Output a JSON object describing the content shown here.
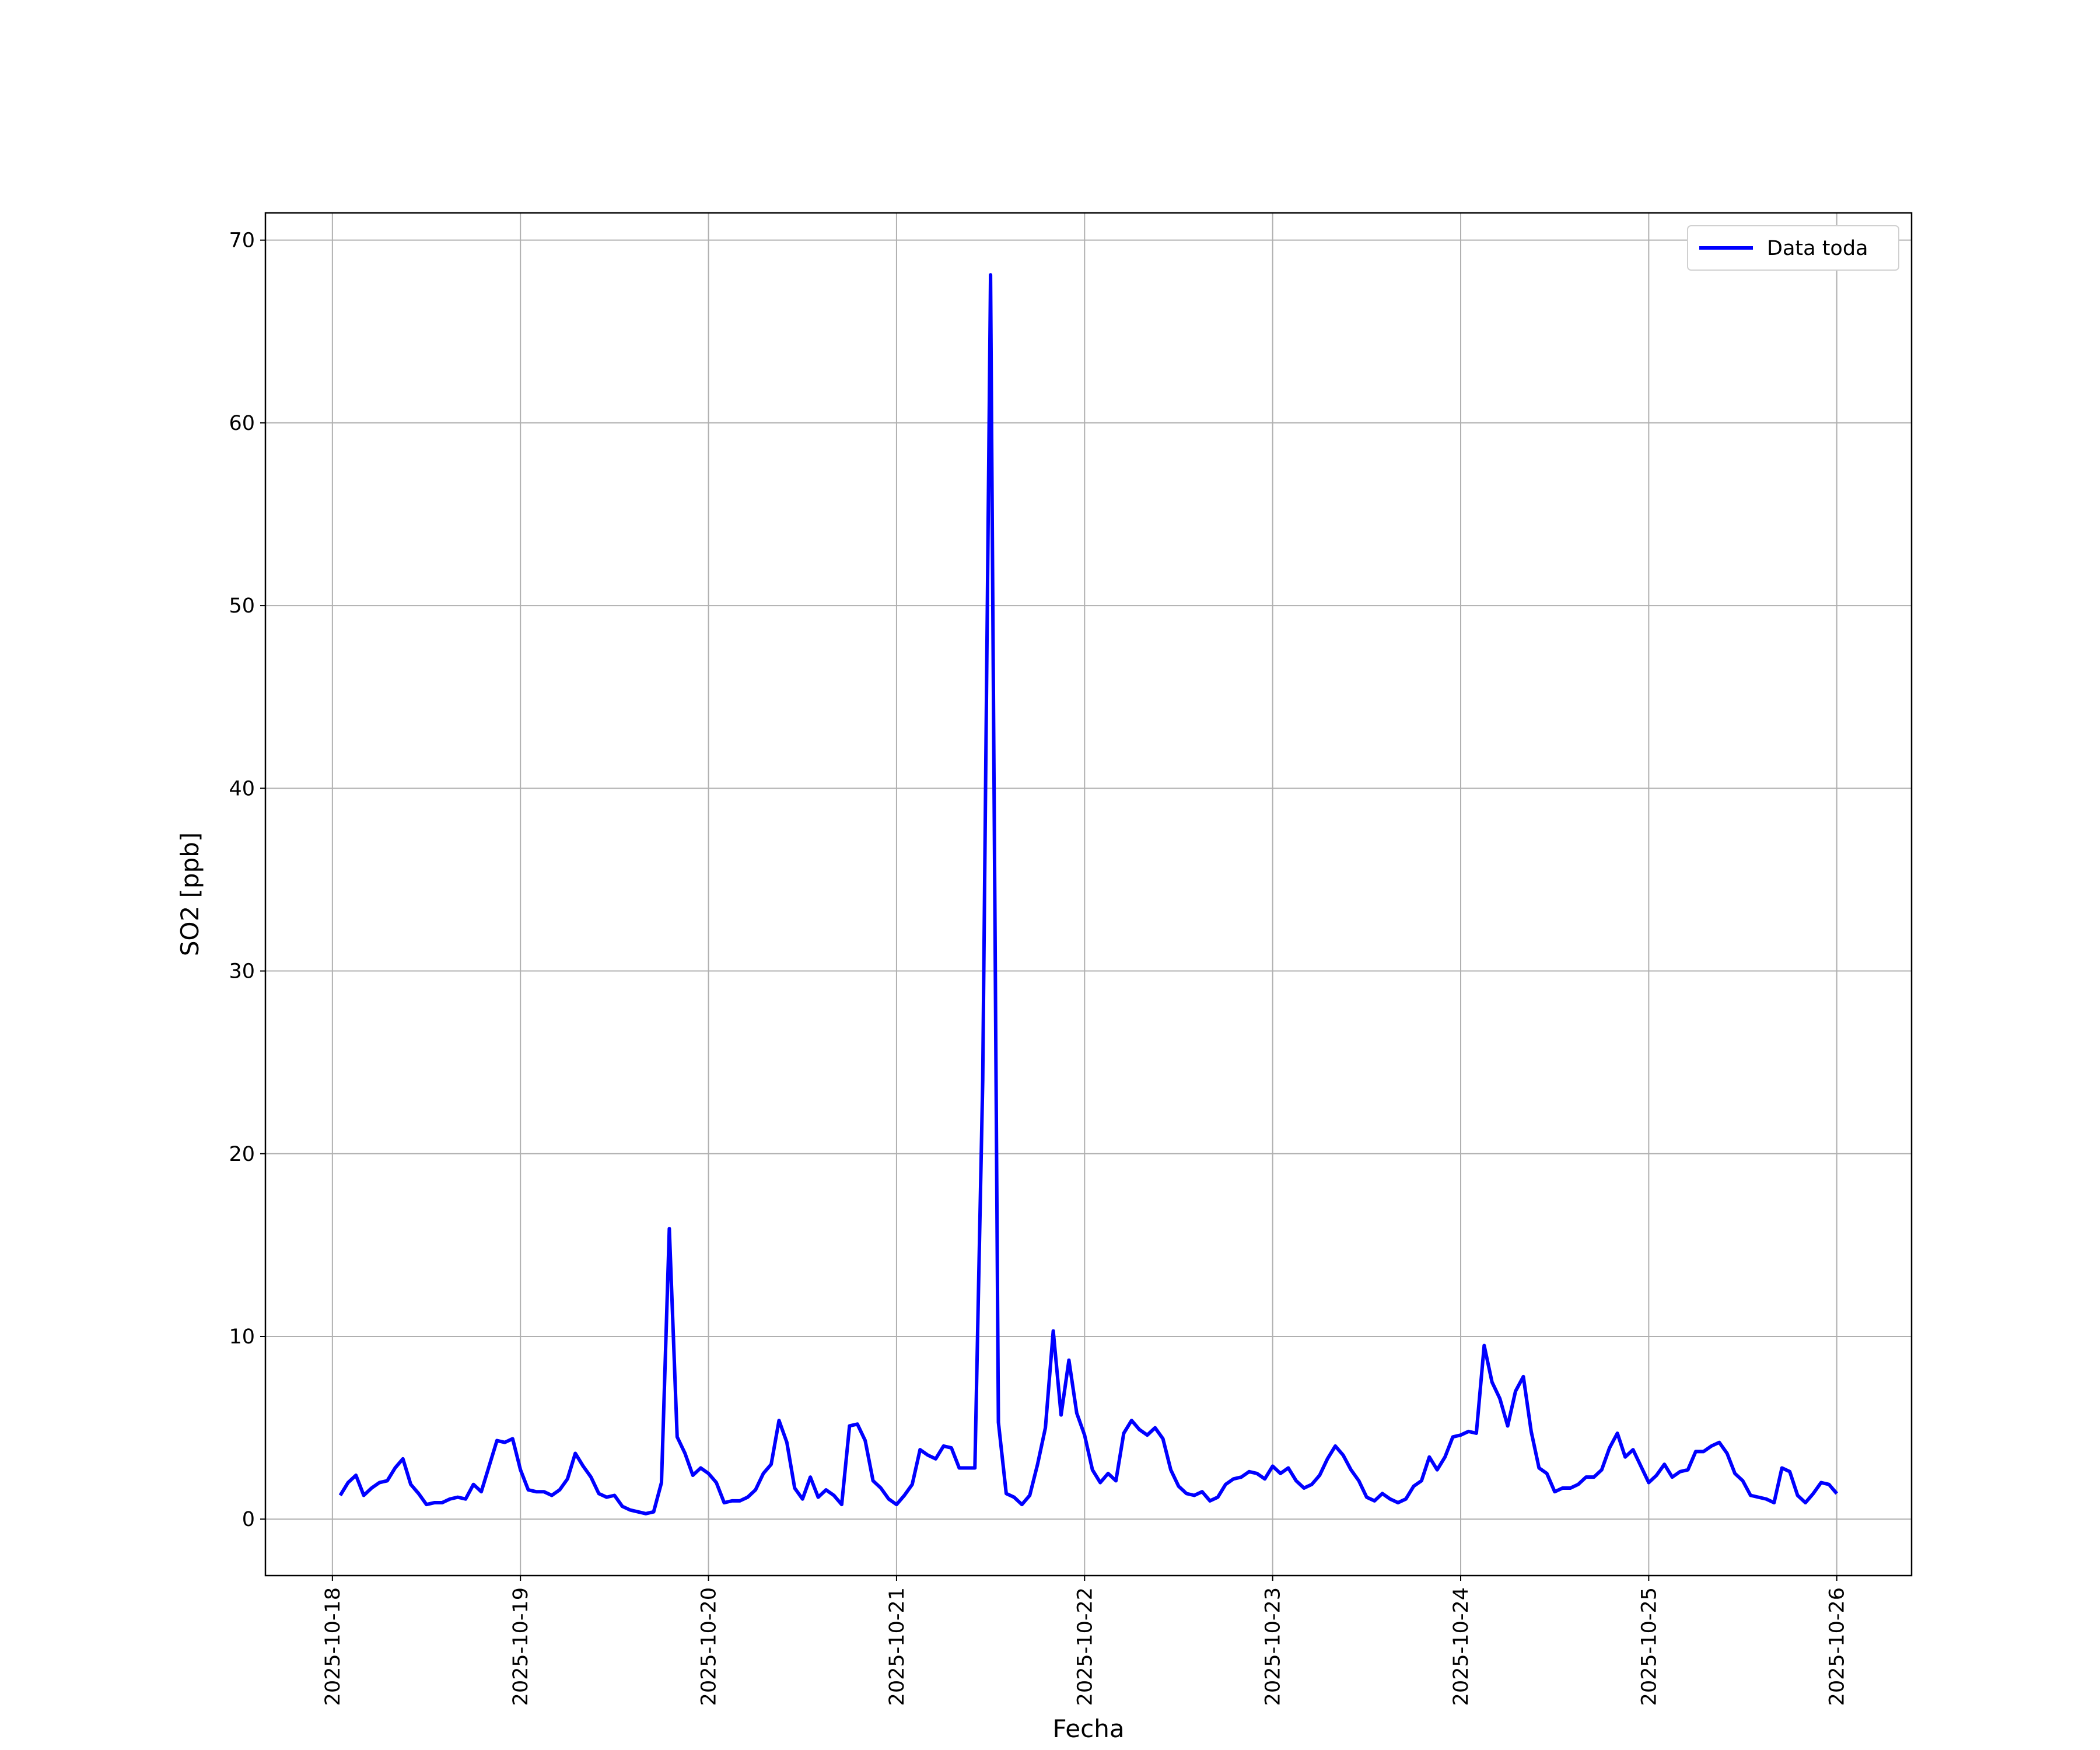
{
  "chart_data": {
    "type": "line",
    "xlabel": "Fecha",
    "ylabel": "SO2 [ppb]",
    "x": [
      1,
      2,
      3,
      4,
      5,
      6,
      7,
      8,
      9,
      10,
      11,
      12,
      13,
      14,
      15,
      16,
      17,
      18,
      19,
      20,
      21,
      22,
      23,
      24,
      25,
      26,
      27,
      28,
      29,
      30,
      31,
      32,
      33,
      34,
      35,
      36,
      37,
      38,
      39,
      40,
      41,
      42,
      43,
      44,
      45,
      46,
      47,
      48,
      49,
      50,
      51,
      52,
      53,
      54,
      55,
      56,
      57,
      58,
      59,
      60,
      61,
      62,
      63,
      64,
      65,
      66,
      67,
      68,
      69,
      70,
      71,
      72,
      73,
      74,
      75,
      76,
      77,
      78,
      79,
      80,
      81,
      82,
      83,
      84,
      85,
      86,
      87,
      88,
      89,
      90,
      91,
      92,
      93,
      94,
      95,
      96,
      97,
      98,
      99,
      100,
      101,
      102,
      103,
      104,
      105,
      106,
      107,
      108,
      109,
      110,
      111,
      112,
      113,
      114,
      115,
      116,
      117,
      118,
      119,
      120,
      121,
      122,
      123,
      124,
      125,
      126,
      127,
      128,
      129,
      130,
      131,
      132,
      133,
      134,
      135,
      136,
      137,
      138,
      139,
      140,
      141,
      142,
      143,
      144,
      145,
      146,
      147,
      148,
      149,
      150,
      151,
      152,
      153,
      154,
      155,
      156,
      157,
      158,
      159,
      160,
      161,
      162,
      163,
      164,
      165,
      166,
      167,
      168,
      169,
      170,
      171,
      172,
      173,
      174,
      175,
      176,
      177,
      178,
      179,
      180,
      181,
      182,
      183,
      184,
      185,
      186,
      187,
      188,
      189,
      190,
      191,
      192
    ],
    "series": [
      {
        "name": "Data toda",
        "color": "#0000ff",
        "values": [
          1.3,
          2.0,
          2.4,
          1.3,
          1.7,
          2.0,
          2.1,
          2.8,
          3.3,
          1.9,
          1.4,
          0.8,
          0.9,
          0.9,
          1.1,
          1.2,
          1.1,
          1.9,
          1.5,
          2.9,
          4.3,
          4.2,
          4.4,
          2.7,
          1.6,
          1.5,
          1.5,
          1.3,
          1.6,
          2.2,
          3.6,
          2.9,
          2.3,
          1.4,
          1.2,
          1.3,
          0.7,
          0.5,
          0.4,
          0.3,
          0.4,
          2.0,
          15.9,
          4.5,
          3.6,
          2.4,
          2.8,
          2.5,
          2.0,
          0.9,
          1.0,
          1.0,
          1.2,
          1.6,
          2.5,
          3.0,
          5.4,
          4.2,
          1.7,
          1.1,
          2.3,
          1.2,
          1.6,
          1.3,
          0.8,
          5.1,
          5.2,
          4.3,
          2.1,
          1.7,
          1.1,
          0.8,
          1.3,
          1.9,
          3.8,
          3.5,
          3.3,
          4.0,
          3.9,
          2.8,
          2.8,
          2.8,
          24,
          68.1,
          5.3,
          1.4,
          1.2,
          0.8,
          1.3,
          3.0,
          5.0,
          10.3,
          5.7,
          8.7,
          5.8,
          4.6,
          2.7,
          2.0,
          2.5,
          2.1,
          4.7,
          5.4,
          4.9,
          4.6,
          5.0,
          4.4,
          2.7,
          1.8,
          1.4,
          1.3,
          1.5,
          1.0,
          1.2,
          1.9,
          2.2,
          2.3,
          2.6,
          2.5,
          2.2,
          2.9,
          2.5,
          2.8,
          2.1,
          1.7,
          1.9,
          2.4,
          3.3,
          4.0,
          3.5,
          2.7,
          2.1,
          1.2,
          1.0,
          1.4,
          1.1,
          0.9,
          1.1,
          1.8,
          2.1,
          3.4,
          2.7,
          3.4,
          4.5,
          4.6,
          4.8,
          4.7,
          9.5,
          7.5,
          6.6,
          5.1,
          7.0,
          7.8,
          4.8,
          2.8,
          2.5,
          1.5,
          1.7,
          1.7,
          1.9,
          2.3,
          2.3,
          2.7,
          3.9,
          4.7,
          3.4,
          3.8,
          2.9,
          2.0,
          2.4,
          3.0,
          2.3,
          2.6,
          2.7,
          3.7,
          3.7,
          4.0,
          4.2,
          3.6,
          2.5,
          2.1,
          1.3,
          1.2,
          1.1,
          0.9,
          2.8,
          2.6,
          1.3,
          0.9,
          1.4,
          2.0,
          1.9,
          1.4
        ]
      }
    ],
    "xlim": [
      -8.55,
      201.55
    ],
    "xticks": [
      {
        "value": 0,
        "label": "2025-10-18"
      },
      {
        "value": 24,
        "label": "2025-10-19"
      },
      {
        "value": 48,
        "label": "2025-10-20"
      },
      {
        "value": 72,
        "label": "2025-10-21"
      },
      {
        "value": 96,
        "label": "2025-10-22"
      },
      {
        "value": 120,
        "label": "2025-10-23"
      },
      {
        "value": 144,
        "label": "2025-10-24"
      },
      {
        "value": 168,
        "label": "2025-10-25"
      },
      {
        "value": 192,
        "label": "2025-10-26"
      }
    ],
    "ylim": [
      -3.09,
      71.49
    ],
    "yticks": [
      0,
      10,
      20,
      30,
      40,
      50,
      60,
      70
    ],
    "grid": true,
    "legend": "upper right"
  }
}
